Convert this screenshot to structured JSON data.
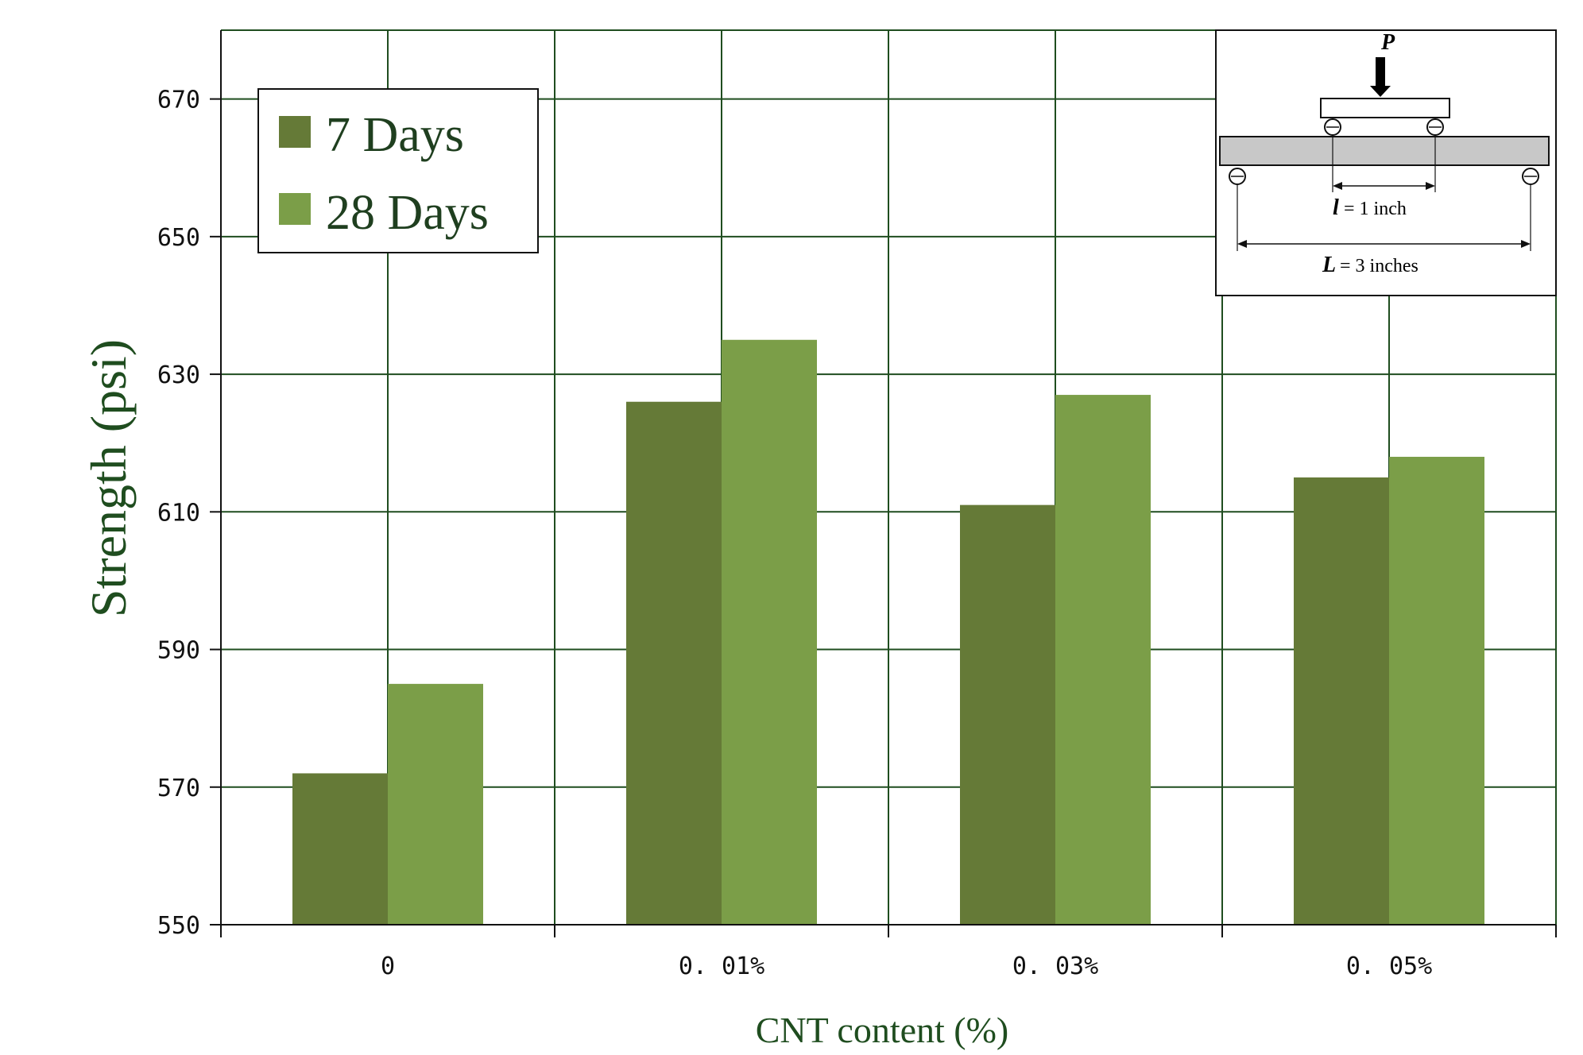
{
  "chart_data": {
    "type": "bar",
    "categories": [
      "0",
      "0. 01%",
      "0. 03%",
      "0. 05%"
    ],
    "series": [
      {
        "name": "7 Days",
        "values": [
          572,
          626,
          611,
          615
        ],
        "color": "#657a37"
      },
      {
        "name": "28 Days",
        "values": [
          585,
          635,
          627,
          618
        ],
        "color": "#7b9e48"
      }
    ],
    "xlabel": "CNT content (%)",
    "ylabel": "Strength (psi)",
    "ylim": [
      550,
      680
    ],
    "yticks": [
      550,
      570,
      590,
      610,
      630,
      650,
      670
    ],
    "grid": true,
    "grid_color": "#1f4d1f",
    "legend_position": "top-left",
    "inset": {
      "load_label": "P",
      "inner_span_var": "l",
      "inner_span_text": "= 1 inch",
      "outer_span_var": "L",
      "outer_span_text": "= 3 inches"
    }
  }
}
